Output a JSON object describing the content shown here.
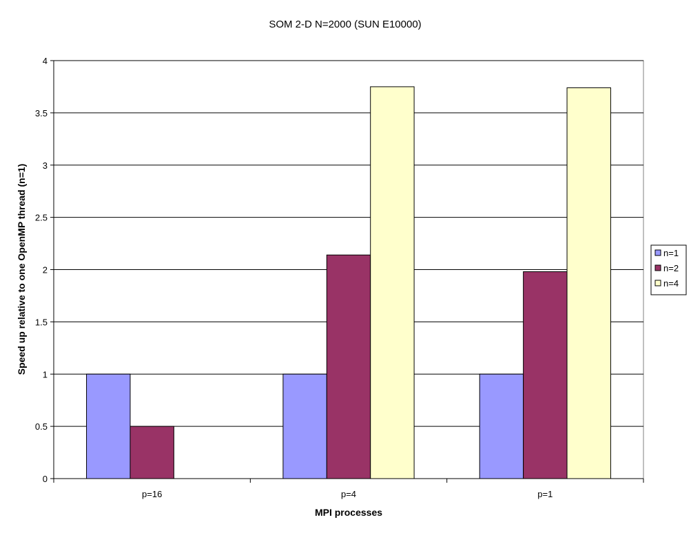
{
  "chart_data": {
    "type": "bar",
    "title": "SOM 2-D N=2000 (SUN E10000)",
    "xlabel": "MPI processes",
    "ylabel": "Speed up relative to one OpenMP thread (n=1)",
    "categories": [
      "p=16",
      "p=4",
      "p=1"
    ],
    "ylim": [
      0,
      4
    ],
    "yticks": [
      "0",
      "0.5",
      "1",
      "1.5",
      "2",
      "2.5",
      "3",
      "3.5",
      "4"
    ],
    "grid": true,
    "legend_position": "right",
    "series": [
      {
        "name": "n=1",
        "color": "#9999ff",
        "values": [
          1,
          1,
          1
        ]
      },
      {
        "name": "n=2",
        "color": "#993366",
        "values": [
          0.5,
          2.14,
          1.98
        ]
      },
      {
        "name": "n=4",
        "color": "#ffffcc",
        "values": [
          null,
          3.75,
          3.74
        ]
      }
    ]
  }
}
